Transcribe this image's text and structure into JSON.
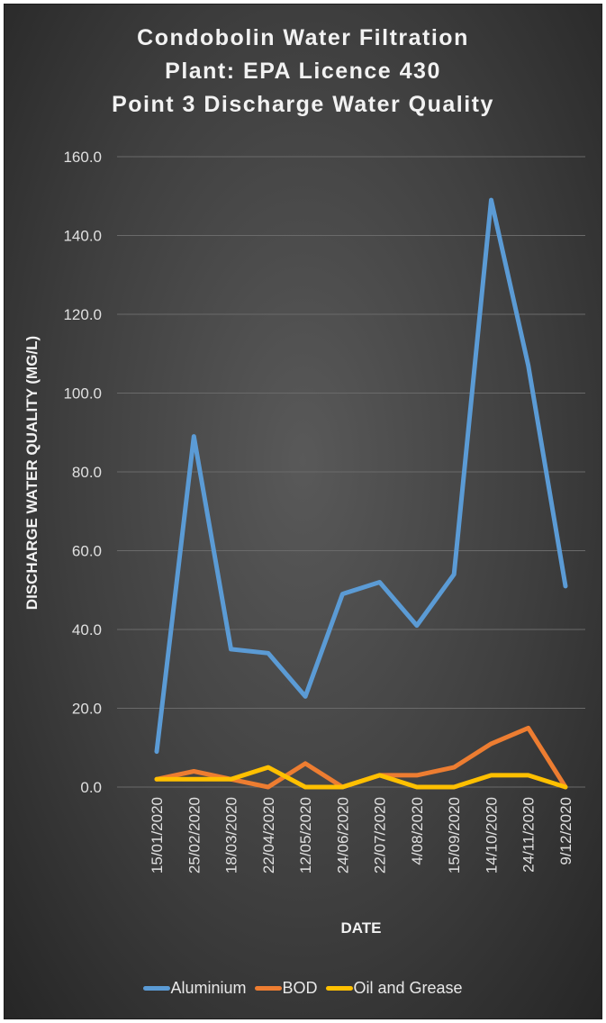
{
  "chart_data": {
    "type": "line",
    "title_lines": [
      "Condobolin Water Filtration",
      "Plant: EPA Licence 430",
      "Point 3 Discharge Water Quality"
    ],
    "xlabel": "DATE",
    "ylabel": "DISCHARGE WATER QUALITY (MG/L)",
    "ylim": [
      0,
      160
    ],
    "yticks": [
      "0.0",
      "20.0",
      "40.0",
      "60.0",
      "80.0",
      "100.0",
      "120.0",
      "140.0",
      "160.0"
    ],
    "grid": true,
    "legend_position": "bottom",
    "categories": [
      "15/01/2020",
      "25/02/2020",
      "18/03/2020",
      "22/04/2020",
      "12/05/2020",
      "24/06/2020",
      "22/07/2020",
      "4/08/2020",
      "15/09/2020",
      "14/10/2020",
      "24/11/2020",
      "9/12/2020"
    ],
    "series": [
      {
        "name": "Aluminium",
        "color": "#5b9bd5",
        "values": [
          9,
          89,
          35,
          34,
          23,
          49,
          52,
          41,
          54,
          149,
          107,
          51
        ]
      },
      {
        "name": "BOD",
        "color": "#ed7d31",
        "values": [
          2,
          4,
          2,
          0,
          6,
          0,
          3,
          3,
          5,
          11,
          15,
          0
        ]
      },
      {
        "name": "Oil and Grease",
        "color": "#ffc000",
        "values": [
          2,
          2,
          2,
          5,
          0,
          0,
          3,
          0,
          0,
          3,
          3,
          0
        ]
      }
    ]
  }
}
